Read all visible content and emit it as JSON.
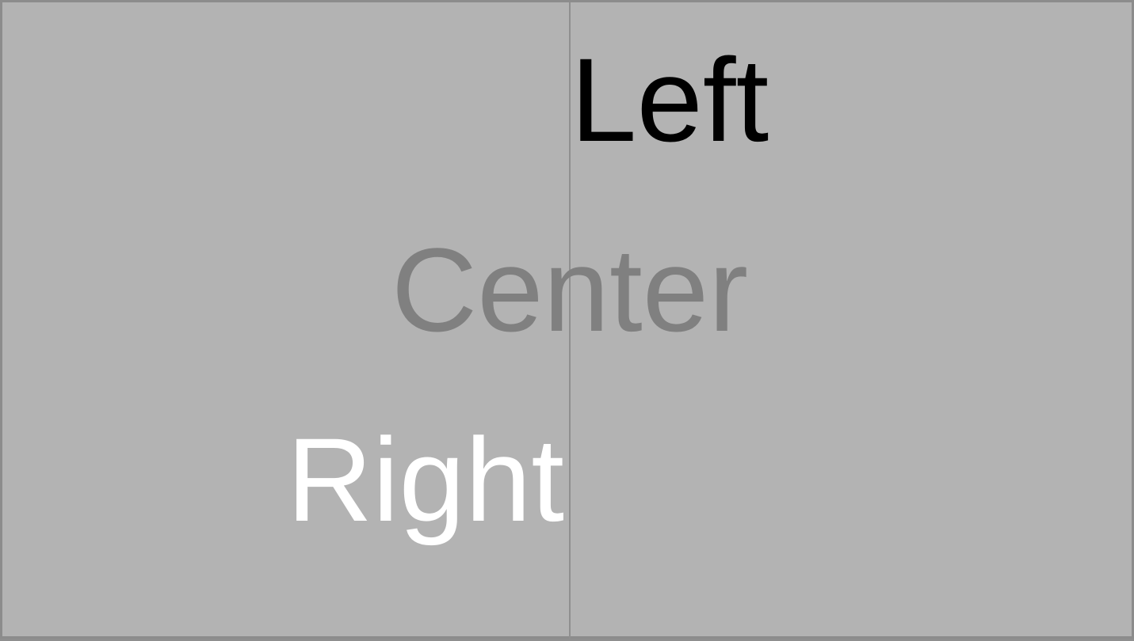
{
  "samples": {
    "left": {
      "text": "Left",
      "color": "#000000"
    },
    "center": {
      "text": "Center",
      "color": "#808080"
    },
    "right": {
      "text": "Right",
      "color": "#ffffff"
    }
  },
  "colors": {
    "background": "#b3b3b3",
    "border": "#8c8c8c",
    "guide_line": "#8f8f8f"
  }
}
